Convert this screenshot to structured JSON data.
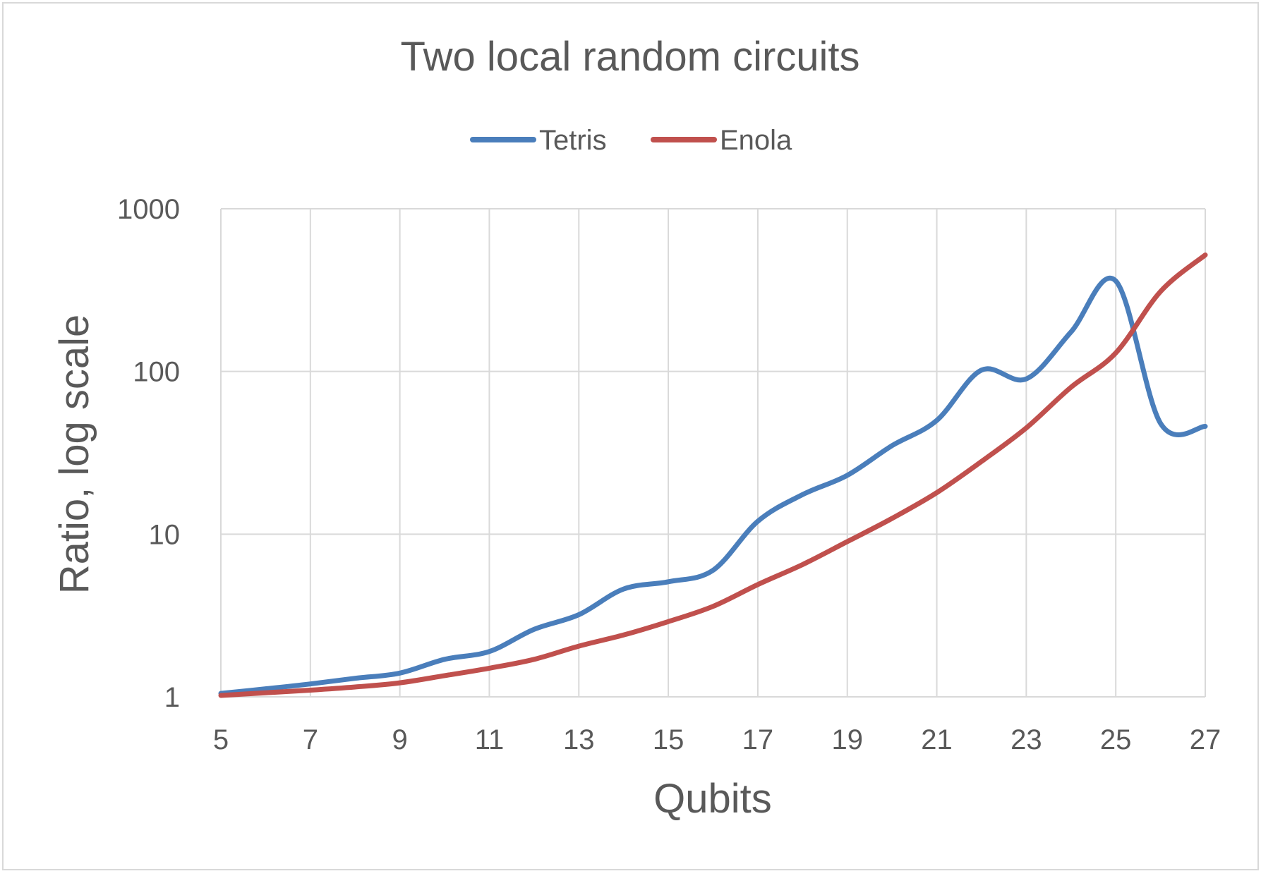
{
  "chart_data": {
    "type": "line",
    "title": "Two local random circuits",
    "xlabel": "Qubits",
    "ylabel": "Ratio, log scale",
    "y_scale": "log",
    "ylim": [
      1,
      1000
    ],
    "xlim": [
      5,
      27
    ],
    "x_ticks": [
      5,
      7,
      9,
      11,
      13,
      15,
      17,
      19,
      21,
      23,
      25,
      27
    ],
    "y_ticks": [
      1,
      10,
      100,
      1000
    ],
    "y_tick_labels": [
      "1",
      "10",
      "100",
      "1000"
    ],
    "grid": true,
    "legend_position": "top",
    "x": [
      5,
      6,
      7,
      8,
      9,
      10,
      11,
      12,
      13,
      14,
      15,
      16,
      17,
      18,
      19,
      20,
      21,
      22,
      23,
      24,
      25,
      26,
      27
    ],
    "series": [
      {
        "name": "Tetris",
        "color": "#4a7ebb",
        "values": [
          1.05,
          1.12,
          1.2,
          1.3,
          1.4,
          1.7,
          1.9,
          2.6,
          3.2,
          4.6,
          5.1,
          6.0,
          12.0,
          17.5,
          23.0,
          35.0,
          50.0,
          102.0,
          90.0,
          175.0,
          360.0,
          48.0,
          46.0
        ]
      },
      {
        "name": "Enola",
        "color": "#c0504d",
        "values": [
          1.02,
          1.06,
          1.1,
          1.15,
          1.22,
          1.35,
          1.5,
          1.7,
          2.05,
          2.4,
          2.9,
          3.6,
          4.9,
          6.5,
          9.0,
          12.5,
          18.0,
          28.0,
          45.0,
          80.0,
          130.0,
          310.0,
          520.0
        ]
      }
    ]
  }
}
